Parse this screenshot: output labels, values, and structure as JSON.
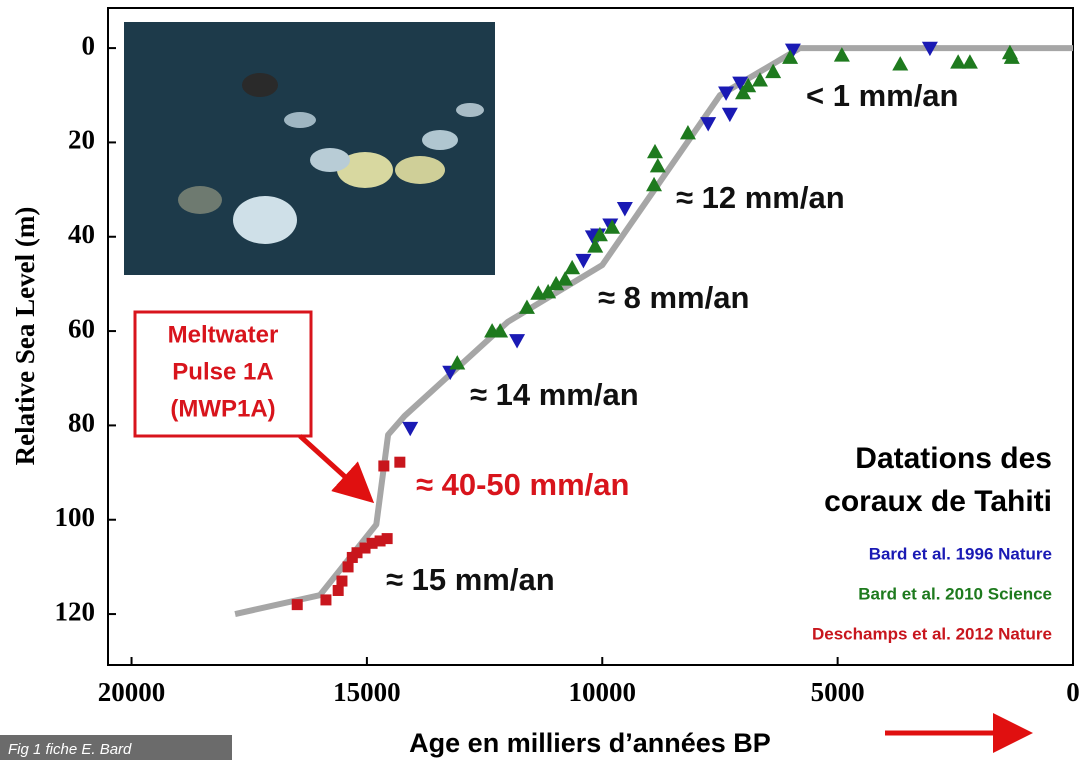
{
  "chart_data": {
    "type": "scatter",
    "xlabel": "Age en milliers d’années BP",
    "ylabel": "Relative Sea Level (m)",
    "xlim": [
      20500,
      0
    ],
    "ylim": [
      -8.5,
      130.8
    ],
    "xticks": [
      20000,
      15000,
      10000,
      5000,
      0
    ],
    "yticks": [
      0,
      20,
      40,
      60,
      80,
      100,
      120
    ],
    "legend_title": [
      "Datations des",
      "coraux de Tahiti"
    ],
    "curve": {
      "color": "#a6a6a6",
      "x": [
        17800,
        16000,
        14800,
        14550,
        14200,
        12000,
        10000,
        7500,
        5800,
        0
      ],
      "y": [
        120,
        116,
        101,
        82,
        78,
        58,
        46,
        10,
        0,
        0
      ]
    },
    "series": [
      {
        "name": "Bard et al. 1996 Nature",
        "color": "#1a1ab4",
        "marker": "triangle-down",
        "x": [
          14080,
          13230,
          11810,
          10200,
          10090,
          9830,
          9520,
          10400,
          7750,
          7290,
          7370,
          7070,
          5950,
          3040
        ],
        "y": [
          80.6,
          68.7,
          62,
          40,
          39.6,
          37.5,
          34,
          45,
          16,
          14,
          9.5,
          7.4,
          0.4,
          0
        ]
      },
      {
        "name": "Bard et al. 2010 Science",
        "color": "#1e7a1e",
        "marker": "triangle-up",
        "x": [
          13080,
          12340,
          12170,
          11600,
          11360,
          11150,
          10980,
          10790,
          10640,
          10150,
          10050,
          9790,
          8880,
          8820,
          8900,
          8180,
          7010,
          6900,
          6650,
          6370,
          6010,
          4910,
          3670,
          2440,
          2190,
          1340,
          1300
        ],
        "y": [
          66.8,
          60,
          60,
          55,
          52,
          51.7,
          50,
          49,
          46.6,
          42,
          39.6,
          38,
          22,
          25,
          29,
          18,
          9.5,
          8,
          6.8,
          5,
          2,
          1.5,
          3.4,
          3,
          3,
          1,
          2
        ]
      },
      {
        "name": "Deschamps et al. 2012 Nature",
        "color": "#c8161d",
        "marker": "square",
        "x": [
          16480,
          15870,
          15610,
          15530,
          15400,
          15310,
          15210,
          15040,
          14890,
          14720,
          14570,
          14640,
          14300
        ],
        "y": [
          118,
          117,
          115,
          113,
          110,
          108,
          107,
          106,
          105,
          104.5,
          104,
          88.6,
          87.8
        ]
      }
    ],
    "annotations": [
      "< 1 mm/an",
      "≈ 12 mm/an",
      "≈ 8 mm/an",
      "≈ 14 mm/an",
      "≈ 40-50 mm/an",
      "≈ 15 mm/an"
    ],
    "callout": [
      "Meltwater",
      "Pulse 1A",
      "(MWP1A)"
    ],
    "footer": "Fig 1 fiche E. Bard"
  }
}
